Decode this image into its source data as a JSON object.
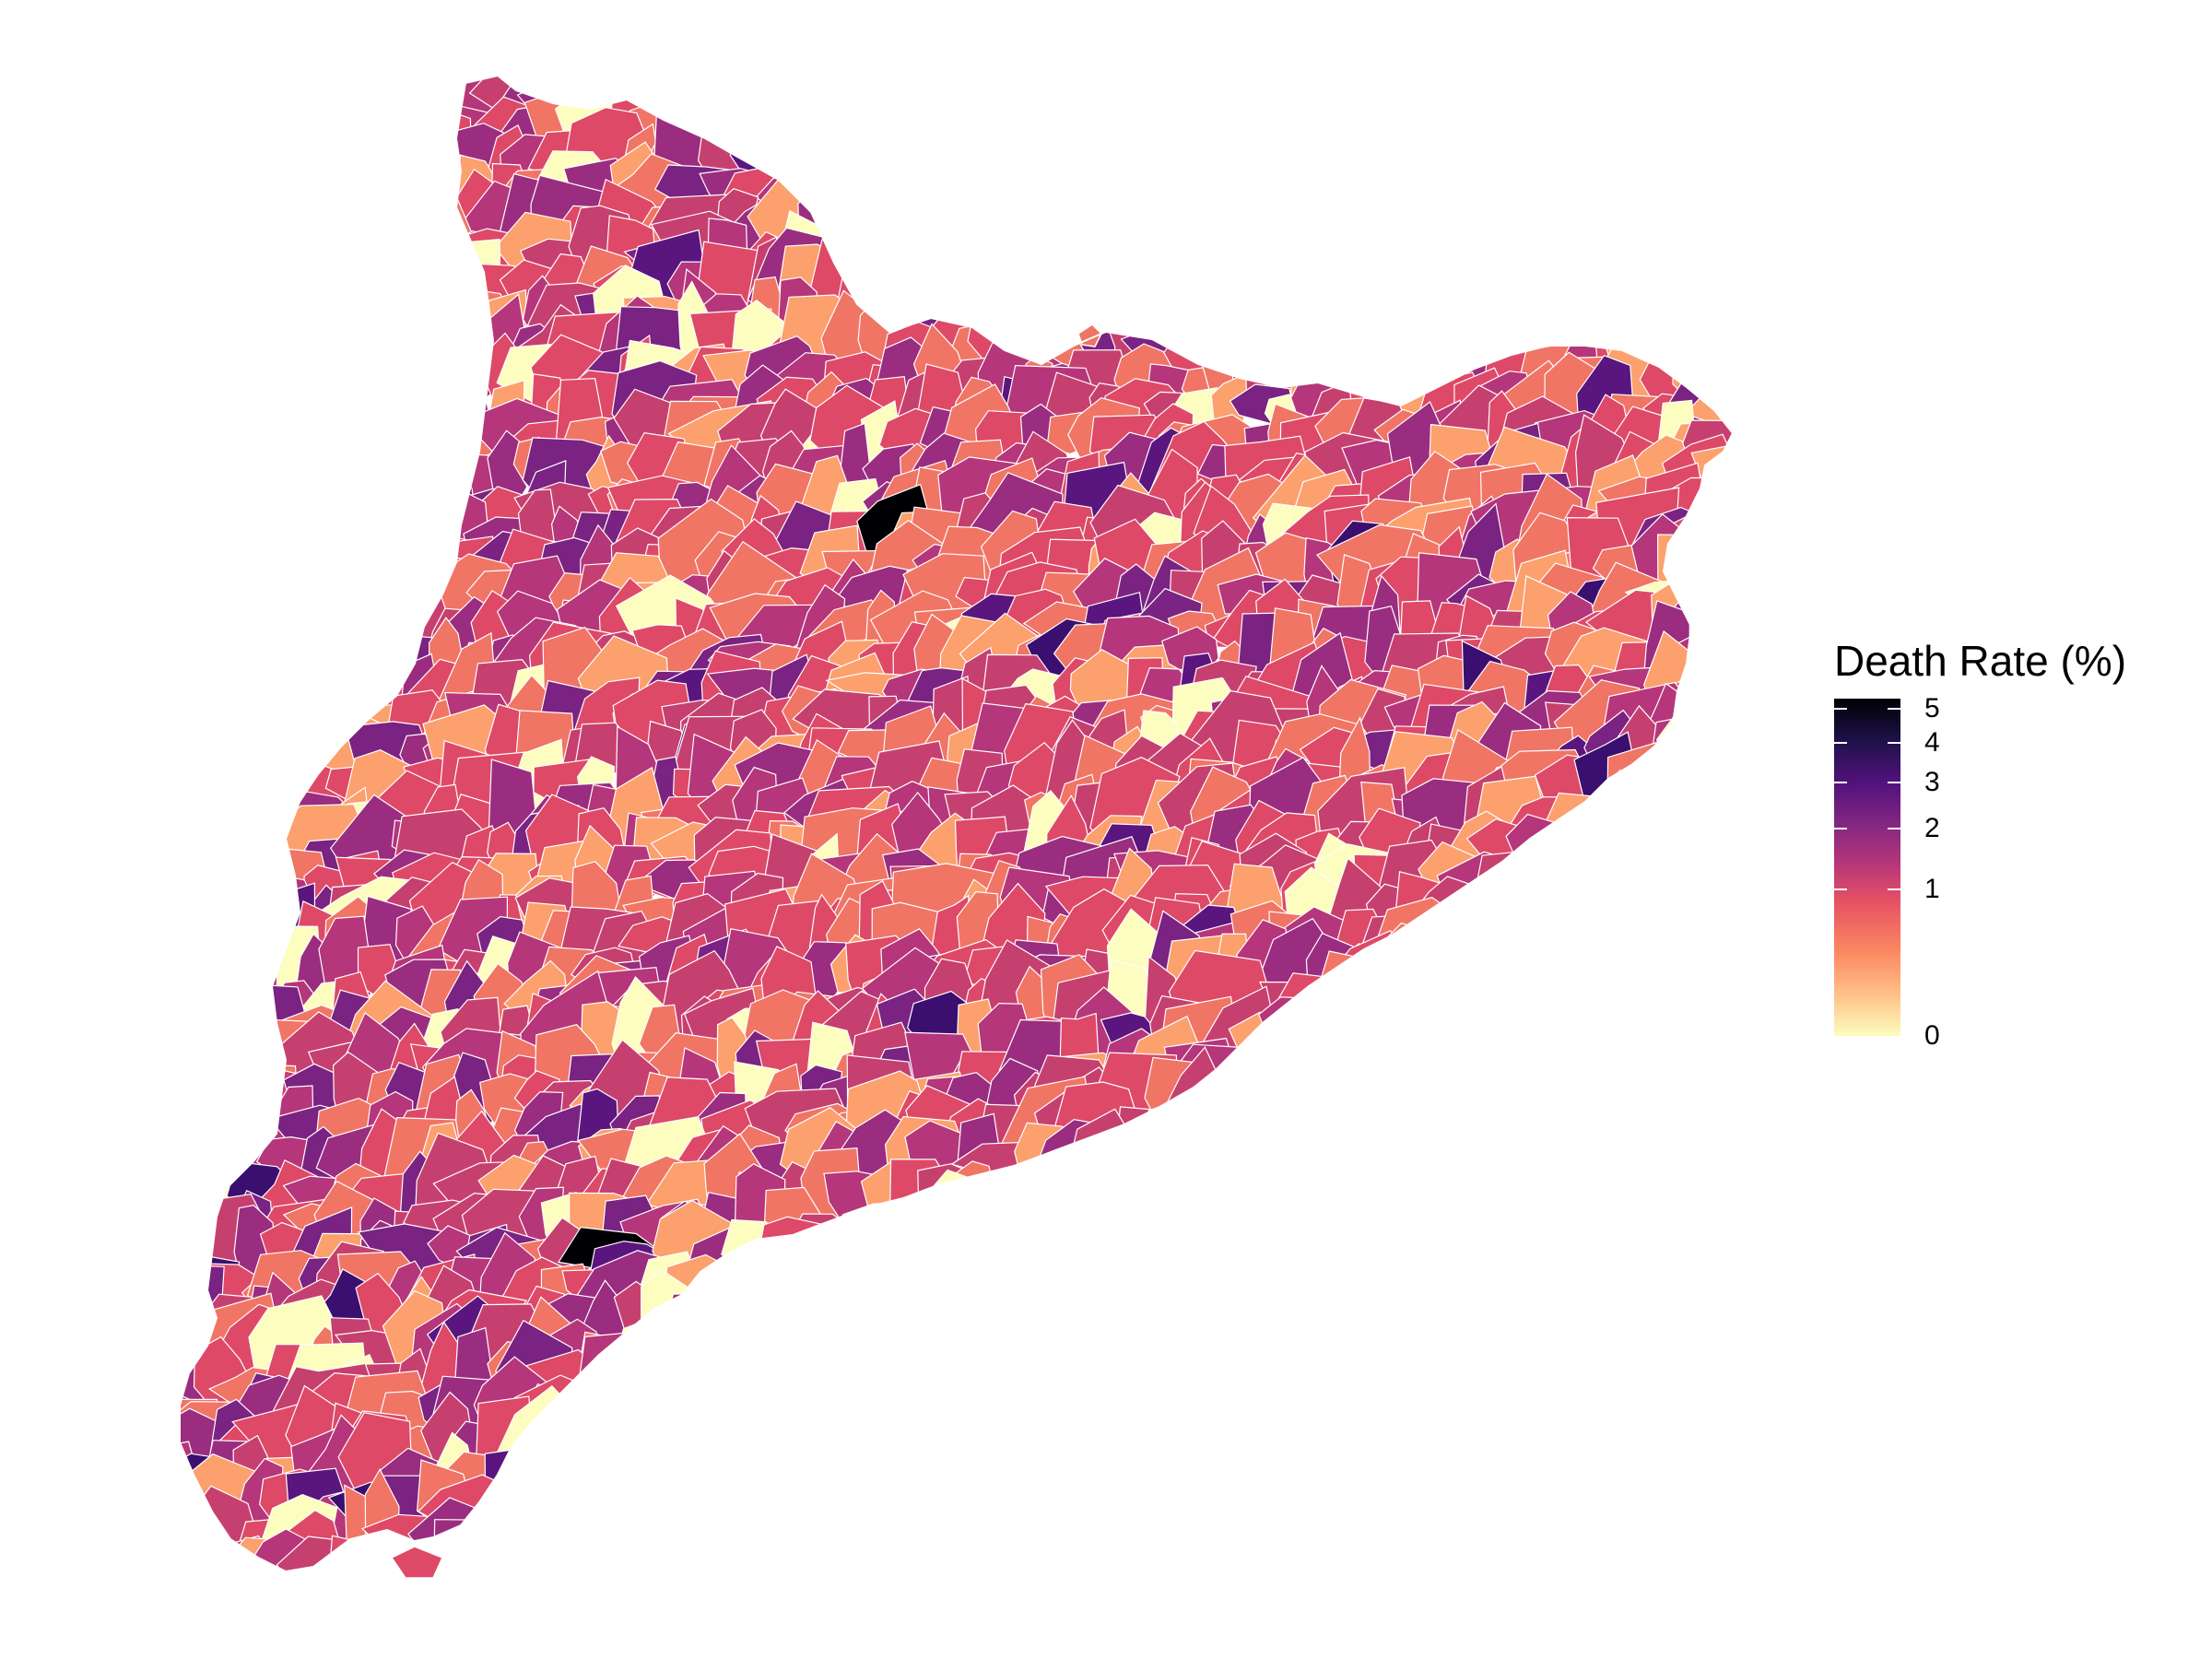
{
  "legend": {
    "title": "Death Rate (%)",
    "ticks": [
      {
        "label": "5",
        "value": 5
      },
      {
        "label": "4",
        "value": 4
      },
      {
        "label": "3",
        "value": 3
      },
      {
        "label": "2",
        "value": 2
      },
      {
        "label": "1",
        "value": 1
      },
      {
        "label": "0",
        "value": 0
      }
    ],
    "range": [
      0,
      5.3
    ],
    "palette": "magma",
    "colors": [
      "#fcfdbf",
      "#fec287",
      "#fb8861",
      "#e65164",
      "#b63679",
      "#822681",
      "#51127c",
      "#1d1147",
      "#000004"
    ]
  },
  "map": {
    "region": "Catalonia municipalities",
    "fill_colors": [
      "#fcfdbf",
      "#fca06e",
      "#f07565",
      "#de4968",
      "#c6406f",
      "#b5367a",
      "#9a2d80",
      "#7a2382",
      "#5a167e",
      "#3b0f70",
      "#000004"
    ],
    "border_color": "#ffffff"
  }
}
